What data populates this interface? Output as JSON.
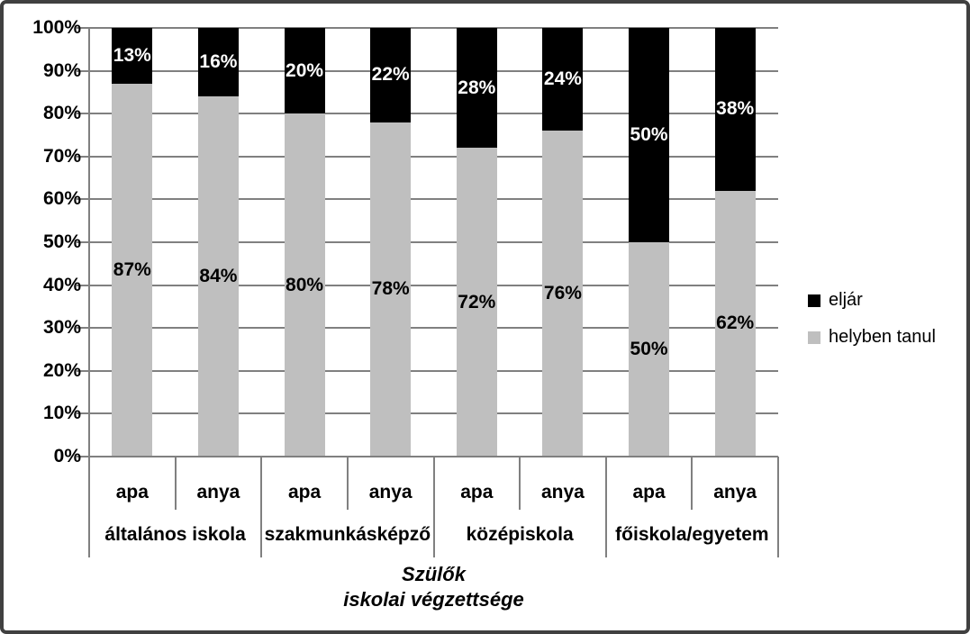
{
  "chart_data": {
    "type": "bar",
    "stacking": "percent",
    "title": "",
    "categories": [
      "apa",
      "anya",
      "apa",
      "anya",
      "apa",
      "anya",
      "apa",
      "anya"
    ],
    "category_groups": [
      "általános iskola",
      "szakmunkásképző",
      "középiskola",
      "főiskola/egyetem"
    ],
    "series": [
      {
        "name": "helyben tanul",
        "color": "#bfbfbf",
        "label_color": "#000000",
        "values": [
          87,
          84,
          80,
          78,
          72,
          76,
          50,
          62
        ]
      },
      {
        "name": "eljár",
        "color": "#000000",
        "label_color": "#ffffff",
        "values": [
          13,
          16,
          20,
          22,
          28,
          24,
          50,
          38
        ]
      }
    ],
    "data_label_format": "{value}%",
    "xlabel": "Szülők iskolai végzettsége",
    "xlabel_lines": [
      "Szülők",
      "iskolai végzettsége"
    ],
    "ylabel": "",
    "ylim": [
      0,
      100
    ],
    "ytick_step": 10,
    "ytick_labels": [
      "0%",
      "10%",
      "20%",
      "30%",
      "40%",
      "50%",
      "60%",
      "70%",
      "80%",
      "90%",
      "100%"
    ],
    "grid": true,
    "gridline_color": "#808080",
    "legend": {
      "position": "right",
      "items": [
        {
          "label": "eljár",
          "color": "#000000"
        },
        {
          "label": "helyben tanul",
          "color": "#bfbfbf"
        }
      ]
    },
    "frame_border_color": "#404040",
    "background": "#ffffff"
  }
}
